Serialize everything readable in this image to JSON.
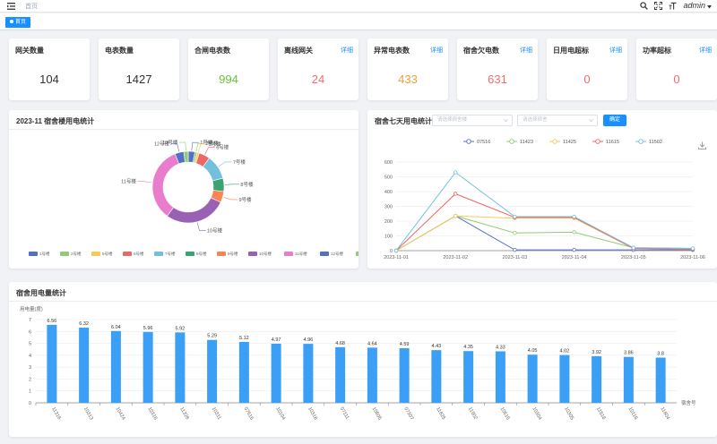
{
  "header": {
    "breadcrumb": "首页",
    "user": "admin"
  },
  "tags": {
    "active": "首页"
  },
  "stats": [
    {
      "title": "网关数量",
      "value": "104",
      "color": "#303133",
      "link": ""
    },
    {
      "title": "电表数量",
      "value": "1427",
      "color": "#303133",
      "link": ""
    },
    {
      "title": "合闸电表数",
      "value": "994",
      "color": "#67c23a",
      "link": ""
    },
    {
      "title": "离线网关",
      "value": "24",
      "color": "#f56c6c",
      "link": "详细"
    },
    {
      "title": "异常电表数",
      "value": "433",
      "color": "#e6a23c",
      "link": "详细"
    },
    {
      "title": "宿舍欠电数",
      "value": "631",
      "color": "#f56c6c",
      "link": "详细"
    },
    {
      "title": "日用电超标",
      "value": "0",
      "color": "#f56c6c",
      "link": "详细"
    },
    {
      "title": "功率超标",
      "value": "0",
      "color": "#f56c6c",
      "link": "详细"
    }
  ],
  "pie_panel": {
    "title": "2023-11 宿舍楼用电统计"
  },
  "line_panel": {
    "title": "宿舍七天用电统计",
    "select1_placeholder": "请选择宿舍楼",
    "select2_placeholder": "请选择宿舍",
    "confirm": "确定"
  },
  "bar_panel": {
    "title": "宿舍用电量统计"
  },
  "chart_data": [
    {
      "type": "pie",
      "title": "",
      "legend_position": "bottom",
      "labels": [
        "1号楼",
        "2号楼",
        "5号楼",
        "6号楼",
        "7号楼",
        "8号楼",
        "9号楼",
        "10号楼",
        "11号楼",
        "12号楼",
        "13号楼"
      ],
      "values": [
        3,
        1,
        1,
        5,
        11,
        6,
        5,
        28,
        34,
        4,
        2
      ],
      "colors": [
        "#5470c6",
        "#91cc75",
        "#fac858",
        "#ee6666",
        "#73c0de",
        "#3ba272",
        "#fc8452",
        "#9a60b4",
        "#ea7ccc",
        "#5470c6",
        "#91cc75"
      ]
    },
    {
      "type": "line",
      "title": "",
      "legend_position": "top",
      "categories": [
        "2023-11-01",
        "2023-11-02",
        "2023-11-03",
        "2023-11-04",
        "2023-11-05",
        "2023-11-06"
      ],
      "ylim": [
        0,
        600
      ],
      "yticks": [
        0,
        100,
        200,
        300,
        400,
        500,
        600
      ],
      "series": [
        {
          "name": "07516",
          "color": "#5470c6",
          "values": [
            0,
            235,
            5,
            5,
            5,
            5
          ]
        },
        {
          "name": "11423",
          "color": "#91cc75",
          "values": [
            0,
            235,
            120,
            125,
            20,
            15
          ]
        },
        {
          "name": "11425",
          "color": "#fac858",
          "values": [
            0,
            235,
            220,
            220,
            15,
            10
          ]
        },
        {
          "name": "11615",
          "color": "#ee6666",
          "values": [
            0,
            385,
            225,
            225,
            15,
            10
          ]
        },
        {
          "name": "11502",
          "color": "#73c0de",
          "values": [
            0,
            530,
            230,
            230,
            20,
            15
          ]
        }
      ]
    },
    {
      "type": "bar",
      "title": "",
      "ylabel": "用电量(度)",
      "xlabel": "宿舍号",
      "ylim": [
        0,
        7
      ],
      "yticks": [
        0,
        1,
        2,
        3,
        4,
        5,
        6,
        7
      ],
      "color": "#3a9ff5",
      "categories": [
        "11316",
        "10313",
        "10424",
        "10316",
        "11326",
        "10311",
        "07516",
        "10104",
        "10318",
        "07111",
        "10605",
        "07307",
        "11625",
        "11502",
        "10515",
        "10304",
        "10305",
        "11518",
        "10116",
        "11604"
      ],
      "values": [
        6.56,
        6.32,
        6.04,
        5.96,
        5.92,
        5.29,
        5.12,
        4.97,
        4.96,
        4.68,
        4.64,
        4.59,
        4.43,
        4.35,
        4.33,
        4.05,
        4.02,
        3.92,
        3.86,
        3.8
      ]
    }
  ]
}
